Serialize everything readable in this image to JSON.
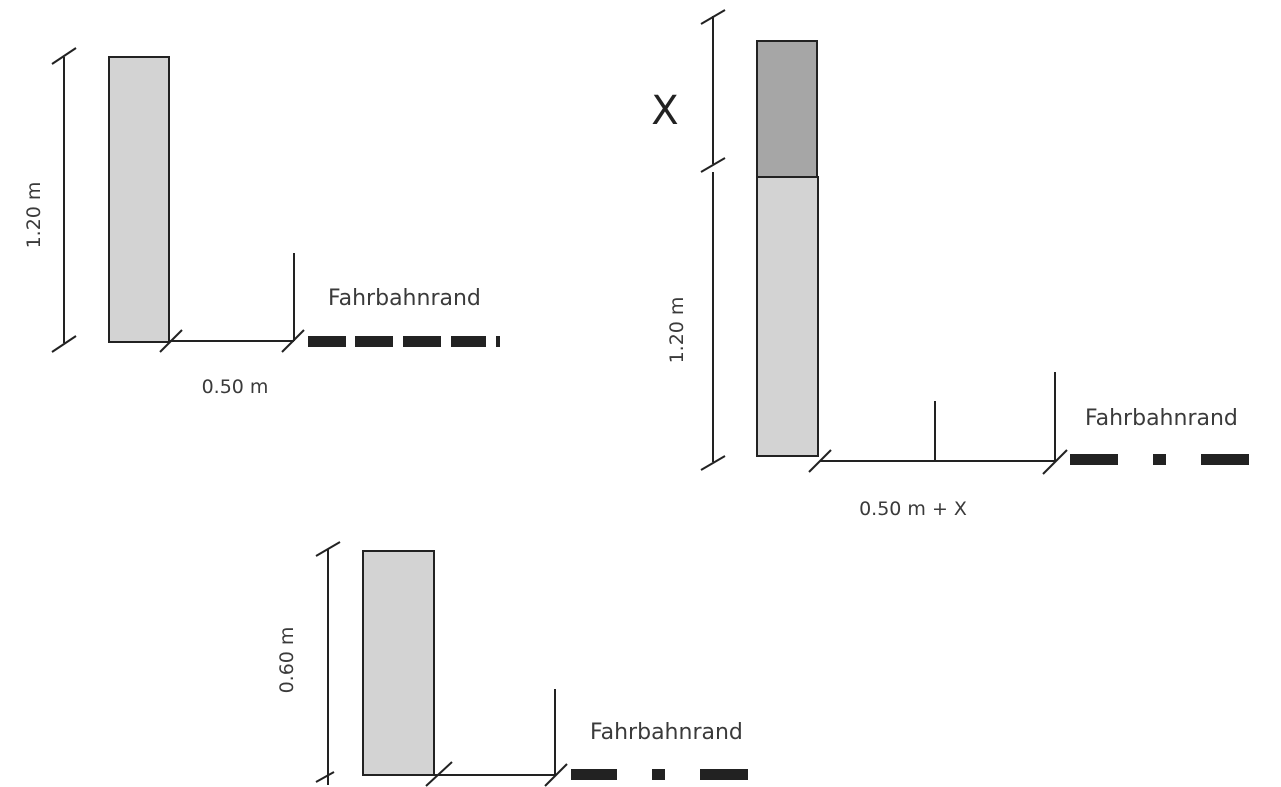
{
  "colors": {
    "bar_fill": "#d3d3d3",
    "bar_fill_extension": "#a6a6a6",
    "line": "#222222",
    "text": "#3a3a3a"
  },
  "diagrams": [
    {
      "id": "diagram-top-left",
      "height_label": "1.20 m",
      "distance_label": "0.50 m",
      "edge_label": "Fahrbahnrand"
    },
    {
      "id": "diagram-top-right",
      "extension_label": "X",
      "height_label": "1.20 m",
      "distance_label": "0.50 m + X",
      "edge_label": "Fahrbahnrand"
    },
    {
      "id": "diagram-bottom",
      "height_label": "0.60 m",
      "edge_label": "Fahrbahnrand"
    }
  ]
}
